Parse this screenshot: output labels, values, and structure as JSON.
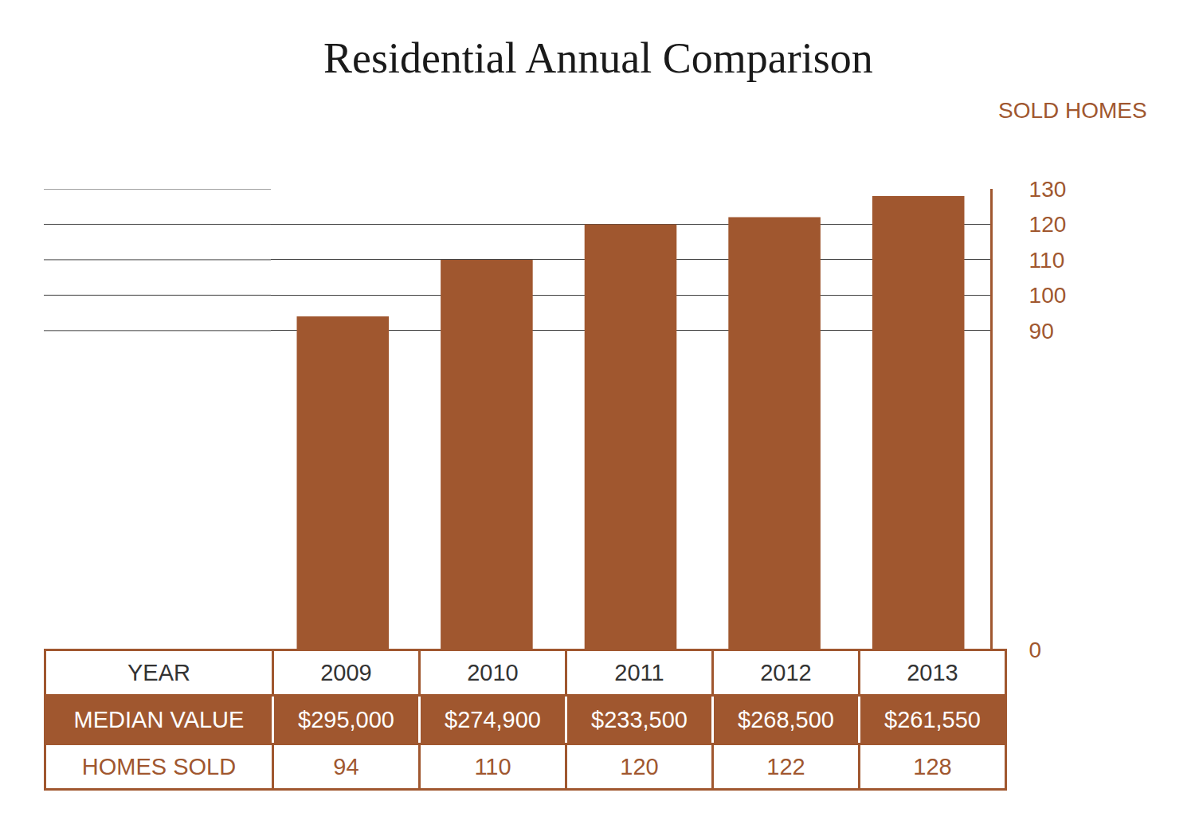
{
  "chart_data": {
    "type": "bar",
    "title": "Residential Annual Comparison",
    "ylabel": "SOLD HOMES",
    "categories": [
      "2009",
      "2010",
      "2011",
      "2012",
      "2013"
    ],
    "values": [
      94,
      110,
      120,
      122,
      128
    ],
    "color": "#a0572f",
    "ylim": [
      0,
      130
    ],
    "yticks": [
      0,
      90,
      100,
      110,
      120,
      130
    ],
    "grid": true,
    "tick_labels": "y",
    "data_labels": false
  },
  "table": {
    "header": "YEAR",
    "rows": [
      {
        "label": "MEDIAN VALUE",
        "cells": [
          "$295,000",
          "$274,900",
          "$233,500",
          "$268,500",
          "$261,550"
        ]
      },
      {
        "label": "HOMES SOLD"
      }
    ]
  }
}
